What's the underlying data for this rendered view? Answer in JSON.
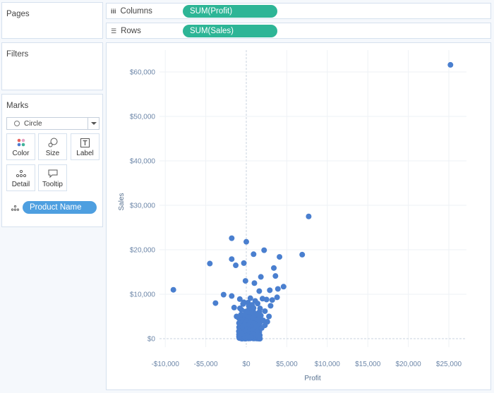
{
  "cards": {
    "pages_title": "Pages",
    "filters_title": "Filters",
    "marks_title": "Marks"
  },
  "marks": {
    "type_label": "Circle",
    "buttons": {
      "color": "Color",
      "size": "Size",
      "label": "Label",
      "detail": "Detail",
      "tooltip": "Tooltip"
    },
    "detail_pill": "Product Name"
  },
  "shelves": {
    "columns_label": "Columns",
    "columns_pill": "SUM(Profit)",
    "rows_label": "Rows",
    "rows_pill": "SUM(Sales)"
  },
  "colors": {
    "teal_pill": "#2db596",
    "blue_pill": "#4e9fe0",
    "point": "#4a7fcf",
    "axis_text": "#6c86a8"
  },
  "chart_data": {
    "type": "scatter",
    "xlabel": "Profit",
    "ylabel": "Sales",
    "xlim": [
      -11000,
      27000
    ],
    "ylim": [
      -1000,
      65000
    ],
    "x_ticks": [
      -10000,
      -5000,
      0,
      5000,
      10000,
      15000,
      20000,
      25000
    ],
    "x_tick_labels": [
      "-$10,000",
      "-$5,000",
      "$0",
      "$5,000",
      "$10,000",
      "$15,000",
      "$20,000",
      "$25,000"
    ],
    "y_ticks": [
      0,
      10000,
      20000,
      30000,
      40000,
      50000,
      60000
    ],
    "y_tick_labels": [
      "$0",
      "$10,000",
      "$20,000",
      "$30,000",
      "$40,000",
      "$50,000",
      "$60,000"
    ],
    "grid": true,
    "points": [
      [
        25200,
        61600
      ],
      [
        7700,
        27500
      ],
      [
        6900,
        18900
      ],
      [
        4100,
        18400
      ],
      [
        2200,
        19900
      ],
      [
        900,
        19000
      ],
      [
        -1800,
        22600
      ],
      [
        0,
        21800
      ],
      [
        -1800,
        17900
      ],
      [
        -4500,
        16900
      ],
      [
        -1300,
        16500
      ],
      [
        -300,
        17000
      ],
      [
        3400,
        15900
      ],
      [
        3600,
        14100
      ],
      [
        1800,
        13900
      ],
      [
        -100,
        13000
      ],
      [
        1000,
        12500
      ],
      [
        -9000,
        11000
      ],
      [
        4600,
        11700
      ],
      [
        3900,
        11200
      ],
      [
        2900,
        10900
      ],
      [
        1600,
        10700
      ],
      [
        -2800,
        9900
      ],
      [
        -1800,
        9600
      ],
      [
        -3800,
        8000
      ],
      [
        3800,
        9300
      ],
      [
        2000,
        9000
      ],
      [
        500,
        9100
      ],
      [
        -800,
        8900
      ],
      [
        1100,
        8500
      ],
      [
        2500,
        8800
      ],
      [
        3200,
        8700
      ],
      [
        -300,
        8200
      ],
      [
        -1500,
        7000
      ],
      [
        700,
        7600
      ],
      [
        1400,
        7900
      ],
      [
        300,
        7400
      ],
      [
        900,
        6900
      ],
      [
        1700,
        6800
      ],
      [
        2300,
        6200
      ],
      [
        -600,
        6500
      ],
      [
        100,
        6100
      ],
      [
        600,
        5800
      ],
      [
        1200,
        5600
      ],
      [
        1800,
        5200
      ],
      [
        -200,
        5300
      ],
      [
        300,
        4900
      ],
      [
        900,
        4700
      ],
      [
        1500,
        4300
      ],
      [
        2100,
        4100
      ],
      [
        -400,
        4200
      ],
      [
        0,
        3900
      ],
      [
        500,
        3600
      ],
      [
        1000,
        3400
      ],
      [
        1600,
        3200
      ],
      [
        -200,
        3200
      ],
      [
        200,
        2900
      ],
      [
        700,
        2700
      ],
      [
        1200,
        2500
      ],
      [
        1900,
        2400
      ],
      [
        -300,
        2300
      ],
      [
        100,
        2100
      ],
      [
        400,
        1900
      ],
      [
        800,
        1800
      ],
      [
        1300,
        1600
      ],
      [
        -100,
        1500
      ],
      [
        200,
        1300
      ],
      [
        500,
        1100
      ],
      [
        900,
        1000
      ],
      [
        1400,
        900
      ],
      [
        -200,
        900
      ],
      [
        0,
        700
      ],
      [
        300,
        600
      ],
      [
        600,
        500
      ],
      [
        100,
        300
      ],
      [
        -50,
        200
      ],
      [
        250,
        150
      ],
      [
        500,
        250
      ],
      [
        -150,
        500
      ],
      [
        150,
        400
      ],
      [
        2600,
        3800
      ],
      [
        2800,
        5000
      ],
      [
        2300,
        3000
      ],
      [
        -600,
        1200
      ],
      [
        -500,
        2800
      ],
      [
        -900,
        3500
      ],
      [
        -1200,
        5000
      ],
      [
        3000,
        7400
      ],
      [
        200,
        8100
      ],
      [
        -400,
        7800
      ]
    ]
  }
}
